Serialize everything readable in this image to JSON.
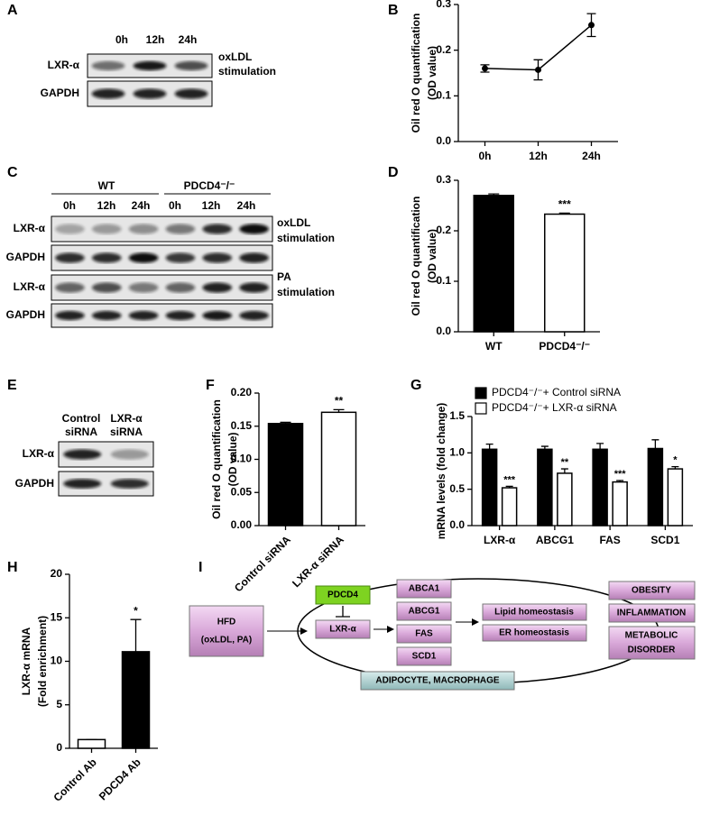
{
  "panel_labels": [
    "A",
    "B",
    "C",
    "D",
    "E",
    "F",
    "G",
    "H",
    "I"
  ],
  "blot_a": {
    "lanes": [
      "0h",
      "12h",
      "24h"
    ],
    "rows": [
      "LXR-α",
      "GAPDH"
    ],
    "treatment": [
      "oxLDL",
      "stimulation"
    ]
  },
  "blot_c": {
    "groups": [
      "WT",
      "PDCD4⁻/⁻"
    ],
    "lanes": [
      "0h",
      "12h",
      "24h",
      "0h",
      "12h",
      "24h"
    ],
    "rows": [
      "LXR-α",
      "GAPDH",
      "LXR-α",
      "GAPDH"
    ],
    "treatments": [
      [
        "oxLDL",
        "stimulation"
      ],
      [
        "PA",
        "stimulation"
      ]
    ]
  },
  "blot_e": {
    "lanes": [
      [
        "Control",
        "siRNA"
      ],
      [
        "LXR-α",
        "siRNA"
      ]
    ],
    "rows": [
      "LXR-α",
      "GAPDH"
    ]
  },
  "chart_data": [
    {
      "type": "line",
      "categories": [
        "0h",
        "12h",
        "24h"
      ],
      "values": [
        0.16,
        0.157,
        0.255
      ],
      "errors": [
        0.008,
        0.022,
        0.025
      ],
      "color": "#000000",
      "ylabel": [
        "Oil red O quantification",
        "(OD value)"
      ],
      "ylim": [
        0,
        0.3
      ],
      "yticks": [
        {
          "value": 0,
          "label": "0.0"
        },
        0.1,
        0.2,
        0.3
      ]
    },
    {
      "type": "bar",
      "categories": [
        "WT",
        "PDCD4⁻/⁻"
      ],
      "values": [
        0.27,
        0.233
      ],
      "errors": [
        0.003,
        0.002
      ],
      "colors": [
        "#000000",
        "#ffffff"
      ],
      "annotations": [
        null,
        "***"
      ],
      "ylabel": [
        "Oil red O quantification",
        "(OD value)"
      ],
      "ylim": [
        0,
        0.3
      ],
      "yticks": [
        {
          "value": 0,
          "label": "0.0"
        },
        0.1,
        0.2,
        0.3
      ]
    },
    {
      "type": "bar",
      "categories": [
        "Control siRNA",
        "LXR-α siRNA"
      ],
      "values": [
        0.154,
        0.171
      ],
      "errors": [
        0.002,
        0.004
      ],
      "colors": [
        "#000000",
        "#ffffff"
      ],
      "annotations": [
        null,
        "**"
      ],
      "ylabel": [
        "Oil red O quantification",
        "(OD value)"
      ],
      "ylim": [
        0,
        0.2
      ],
      "yticks": [
        {
          "value": 0,
          "label": "0.00"
        },
        0.05,
        {
          "value": 0.1,
          "label": "0.10"
        },
        0.15,
        {
          "value": 0.2,
          "label": "0.20"
        }
      ]
    },
    {
      "type": "grouped_bar",
      "categories": [
        "LXR-α",
        "ABCG1",
        "FAS",
        "SCD1"
      ],
      "series": [
        {
          "name": "PDCD4⁻/⁻+ Control siRNA",
          "color": "#000000",
          "values": [
            1.05,
            1.05,
            1.05,
            1.06
          ],
          "errors": [
            0.07,
            0.04,
            0.08,
            0.12
          ]
        },
        {
          "name": "PDCD4⁻/⁻+ LXR-α siRNA",
          "color": "#ffffff",
          "values": [
            0.52,
            0.72,
            0.6,
            0.78
          ],
          "errors": [
            0.02,
            0.06,
            0.02,
            0.03
          ],
          "annotations": [
            "***",
            "**",
            "***",
            "*"
          ]
        }
      ],
      "ylabel": [
        "mRNA levels (fold change)"
      ],
      "ylim": [
        0,
        1.5
      ],
      "yticks": [
        {
          "value": 0,
          "label": "0.0"
        },
        0.5,
        {
          "value": 1,
          "label": "1.0"
        },
        1.5
      ]
    },
    {
      "type": "bar",
      "categories": [
        "Control Ab",
        "PDCD4 Ab"
      ],
      "values": [
        1,
        11.1
      ],
      "errors": [
        0,
        3.7
      ],
      "colors": [
        "#ffffff",
        "#000000"
      ],
      "annotations": [
        null,
        "*"
      ],
      "ylabel": [
        "LXR-α mRNA",
        "(Fold enrichment)"
      ],
      "ylim": [
        0,
        20
      ],
      "yticks": [
        0,
        5,
        10,
        15,
        20
      ]
    }
  ],
  "diagram": {
    "input": [
      "HFD",
      "(oxLDL, PA)"
    ],
    "regulator": "PDCD4",
    "target": "LXR-α",
    "genes": [
      "ABCA1",
      "ABCG1",
      "FAS",
      "SCD1"
    ],
    "processes": [
      "Lipid homeostasis",
      "ER homeostasis"
    ],
    "cells": "ADIPOCYTE, MACROPHAGE",
    "outcomes": [
      [
        "OBESITY"
      ],
      [
        "INFLAMMATION"
      ],
      [
        "METABOLIC",
        "DISORDER"
      ]
    ]
  }
}
